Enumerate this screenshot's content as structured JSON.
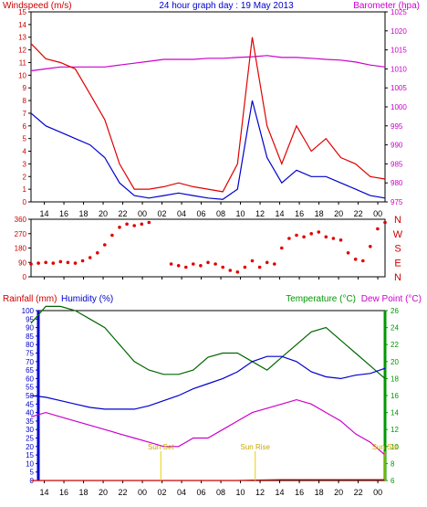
{
  "header": {
    "title": "24 hour graph day : 19 May 2013",
    "left_label": "Windspeed (m/s)",
    "right_label": "Barometer (hpa)"
  },
  "mid_labels": {
    "rainfall": "Rainfall (mm)",
    "humidity": "Humidity (%)",
    "temperature": "Temperature (°C)",
    "dewpoint": "Dew Point (°C)"
  },
  "compass": [
    "N",
    "W",
    "S",
    "E",
    "N"
  ],
  "annotations": {
    "sun_set": "Sun Set",
    "sun_rise": "Sun Rise",
    "sun_set_2": "Sun Set"
  },
  "x_axis": {
    "tick_labels": [
      "14",
      "16",
      "18",
      "20",
      "22",
      "00",
      "02",
      "04",
      "06",
      "08",
      "10",
      "12",
      "14",
      "16",
      "18",
      "20",
      "22",
      "00"
    ]
  },
  "colors": {
    "wind_gust": "#e00000",
    "wind_avg": "#0000cc",
    "barometer": "#cc00cc",
    "direction": "#e00000",
    "humidity": "#0000cc",
    "temperature": "#006600",
    "dewpoint": "#cc00cc",
    "rain": "#cc0000",
    "sun": "#e8d000",
    "grid": "#a0a0a0",
    "blue_text": "#0000cc",
    "magenta_text": "#cc00cc",
    "green_text": "#009900",
    "red_text": "#cc0000"
  },
  "chart_data": [
    {
      "type": "line",
      "name": "wind",
      "title": "24 hour graph day : 19 May 2013",
      "ylabel": "Windspeed (m/s)",
      "ylim": [
        0,
        15
      ],
      "y_ticks": [
        0,
        1,
        2,
        3,
        4,
        5,
        6,
        7,
        8,
        9,
        10,
        11,
        12,
        13,
        14,
        15
      ],
      "y2label": "Barometer (hpa)",
      "y2lim": [
        975,
        1025
      ],
      "y2_ticks": [
        975,
        980,
        985,
        990,
        995,
        1000,
        1005,
        1010,
        1015,
        1020,
        1025
      ],
      "x_hours": [
        0,
        1,
        2,
        3,
        4,
        5,
        6,
        7,
        8,
        9,
        10,
        11,
        12,
        13,
        14,
        15,
        16,
        17,
        18,
        19,
        20,
        21,
        22,
        23,
        24
      ],
      "series": [
        {
          "key": "gust",
          "values": [
            12.5,
            11.3,
            11.0,
            10.5,
            8.5,
            6.5,
            3.0,
            1.0,
            1.0,
            1.2,
            1.5,
            1.2,
            1.0,
            0.8,
            3.0,
            13.0,
            6.0,
            3.0,
            6.0,
            4.0,
            5.0,
            3.5,
            3.0,
            2.0,
            1.8
          ]
        },
        {
          "key": "avg",
          "values": [
            7.0,
            6.0,
            5.5,
            5.0,
            4.5,
            3.5,
            1.5,
            0.5,
            0.3,
            0.5,
            0.7,
            0.5,
            0.3,
            0.2,
            1.0,
            8.0,
            3.5,
            1.5,
            2.5,
            2.0,
            2.0,
            1.5,
            1.0,
            0.5,
            0.3
          ]
        },
        {
          "key": "barometer",
          "values": [
            1009.5,
            1010,
            1010.5,
            1010.5,
            1010.5,
            1010.5,
            1011,
            1011.5,
            1012,
            1012.5,
            1012.5,
            1012.5,
            1012.8,
            1012.8,
            1013,
            1013.2,
            1013.5,
            1013,
            1013,
            1012.8,
            1012.5,
            1012.3,
            1011.8,
            1011,
            1010.5
          ]
        }
      ]
    },
    {
      "type": "scatter",
      "name": "wind-direction",
      "y_ticks": [
        0,
        90,
        180,
        270,
        360
      ],
      "ylim": [
        0,
        360
      ],
      "x_hours": [
        0,
        0.5,
        1,
        1.5,
        2,
        2.5,
        3,
        3.5,
        4,
        4.5,
        5,
        5.5,
        6,
        6.5,
        7,
        7.5,
        8,
        9.5,
        10,
        10.5,
        11,
        11.5,
        12,
        12.5,
        13,
        13.5,
        14,
        14.5,
        15,
        15.5,
        16,
        16.5,
        17,
        17.5,
        18,
        18.5,
        19,
        19.5,
        20,
        20.5,
        21,
        21.5,
        22,
        22.5,
        23,
        23.5,
        24
      ],
      "series": [
        {
          "key": "direction",
          "values": [
            80,
            85,
            90,
            85,
            95,
            90,
            85,
            100,
            120,
            150,
            200,
            260,
            310,
            330,
            320,
            330,
            340,
            80,
            70,
            60,
            80,
            70,
            90,
            80,
            60,
            40,
            30,
            60,
            100,
            60,
            90,
            80,
            180,
            240,
            260,
            250,
            270,
            280,
            250,
            240,
            230,
            150,
            110,
            100,
            190,
            300,
            340
          ]
        }
      ]
    },
    {
      "type": "line",
      "name": "humidity-temperature",
      "ylabel": "Rainfall (mm)",
      "ylim": [
        0,
        100
      ],
      "y_ticks": [
        0,
        5,
        10,
        15,
        20,
        25,
        30,
        35,
        40,
        45,
        50,
        55,
        60,
        65,
        70,
        75,
        80,
        85,
        90,
        95,
        100
      ],
      "y2lim": [
        6,
        26
      ],
      "y2_ticks": [
        6,
        8,
        10,
        12,
        14,
        16,
        18,
        20,
        22,
        24,
        26
      ],
      "x_hours": [
        0,
        1,
        2,
        3,
        4,
        5,
        6,
        7,
        8,
        9,
        10,
        11,
        12,
        13,
        14,
        15,
        16,
        17,
        18,
        19,
        20,
        21,
        22,
        23,
        24
      ],
      "series": [
        {
          "key": "humidity",
          "values": [
            50,
            49,
            47,
            45,
            43,
            42,
            42,
            42,
            44,
            47,
            50,
            54,
            57,
            60,
            64,
            70,
            73,
            73,
            70,
            64,
            61,
            60,
            62,
            63,
            66
          ]
        },
        {
          "key": "temperature",
          "values": [
            24.5,
            26.5,
            26.5,
            26,
            25,
            24,
            22,
            20,
            19,
            18.5,
            18.5,
            19,
            20.5,
            21,
            21,
            20,
            19,
            20.5,
            22,
            23.5,
            24,
            22.5,
            21,
            19.5,
            18
          ]
        },
        {
          "key": "dewpoint",
          "values": [
            13.5,
            14,
            13.5,
            13,
            12.5,
            12,
            11.5,
            11,
            10.5,
            10,
            10,
            11,
            11,
            12,
            13,
            14,
            14.5,
            15,
            15.5,
            15,
            14,
            13,
            11.5,
            10.5,
            9
          ]
        },
        {
          "key": "rain",
          "values": [
            0,
            0,
            0,
            0,
            0,
            0,
            0,
            0,
            0,
            0,
            0,
            0,
            0,
            0,
            0,
            0.2,
            0.3,
            0.5,
            0.5,
            0.5,
            0.5,
            0.5,
            0.5,
            0.5,
            0.5
          ]
        }
      ],
      "sun_events": [
        {
          "label": "Sun Set",
          "hour": 8.8
        },
        {
          "label": "Sun Rise",
          "hour": 15.2
        },
        {
          "label": "Sun Set",
          "hour": 24.0
        }
      ]
    }
  ]
}
